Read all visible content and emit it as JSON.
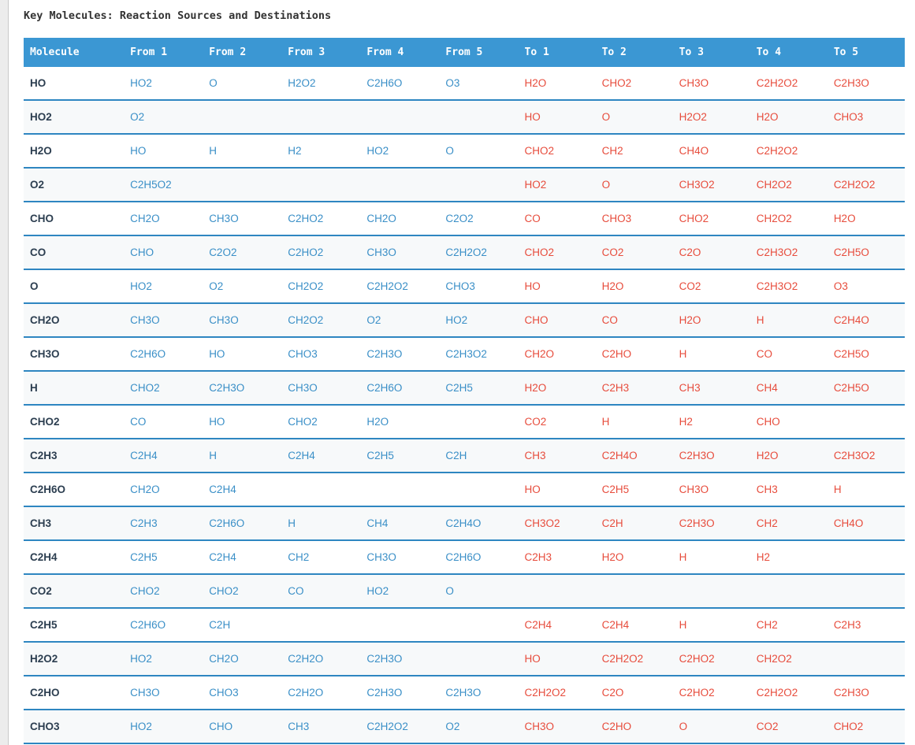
{
  "title": "Key Molecules: Reaction Sources and Destinations",
  "colors": {
    "header_bg": "#3b97d3",
    "row_separator": "#2e86c1",
    "from_text": "#3a8fc7",
    "to_text": "#e74c3c",
    "molecule_text": "#2c3e50",
    "stripe_bg": "#f7f9fa",
    "title_text": "#333333"
  },
  "table": {
    "columns": [
      "Molecule",
      "From 1",
      "From 2",
      "From 3",
      "From 4",
      "From 5",
      "To 1",
      "To 2",
      "To 3",
      "To 4",
      "To 5"
    ],
    "rows": [
      {
        "molecule": "HO",
        "from": [
          "HO2",
          "O",
          "H2O2",
          "C2H6O",
          "O3"
        ],
        "to": [
          "H2O",
          "CHO2",
          "CH3O",
          "C2H2O2",
          "C2H3O"
        ]
      },
      {
        "molecule": "HO2",
        "from": [
          "O2",
          "",
          "",
          "",
          ""
        ],
        "to": [
          "HO",
          "O",
          "H2O2",
          "H2O",
          "CHO3"
        ]
      },
      {
        "molecule": "H2O",
        "from": [
          "HO",
          "H",
          "H2",
          "HO2",
          "O"
        ],
        "to": [
          "CHO2",
          "CH2",
          "CH4O",
          "C2H2O2",
          ""
        ]
      },
      {
        "molecule": "O2",
        "from": [
          "C2H5O2",
          "",
          "",
          "",
          ""
        ],
        "to": [
          "HO2",
          "O",
          "CH3O2",
          "CH2O2",
          "C2H2O2"
        ]
      },
      {
        "molecule": "CHO",
        "from": [
          "CH2O",
          "CH3O",
          "C2HO2",
          "CH2O",
          "C2O2"
        ],
        "to": [
          "CO",
          "CHO3",
          "CHO2",
          "CH2O2",
          "H2O"
        ]
      },
      {
        "molecule": "CO",
        "from": [
          "CHO",
          "C2O2",
          "C2HO2",
          "CH3O",
          "C2H2O2"
        ],
        "to": [
          "CHO2",
          "CO2",
          "C2O",
          "C2H3O2",
          "C2H5O"
        ]
      },
      {
        "molecule": "O",
        "from": [
          "HO2",
          "O2",
          "CH2O2",
          "C2H2O2",
          "CHO3"
        ],
        "to": [
          "HO",
          "H2O",
          "CO2",
          "C2H3O2",
          "O3"
        ]
      },
      {
        "molecule": "CH2O",
        "from": [
          "CH3O",
          "CH3O",
          "CH2O2",
          "O2",
          "HO2"
        ],
        "to": [
          "CHO",
          "CO",
          "H2O",
          "H",
          "C2H4O"
        ]
      },
      {
        "molecule": "CH3O",
        "from": [
          "C2H6O",
          "HO",
          "CHO3",
          "C2H3O",
          "C2H3O2"
        ],
        "to": [
          "CH2O",
          "C2HO",
          "H",
          "CO",
          "C2H5O"
        ]
      },
      {
        "molecule": "H",
        "from": [
          "CHO2",
          "C2H3O",
          "CH3O",
          "C2H6O",
          "C2H5"
        ],
        "to": [
          "H2O",
          "C2H3",
          "CH3",
          "CH4",
          "C2H5O"
        ]
      },
      {
        "molecule": "CHO2",
        "from": [
          "CO",
          "HO",
          "CHO2",
          "H2O",
          ""
        ],
        "to": [
          "CO2",
          "H",
          "H2",
          "CHO",
          ""
        ]
      },
      {
        "molecule": "C2H3",
        "from": [
          "C2H4",
          "H",
          "C2H4",
          "C2H5",
          "C2H"
        ],
        "to": [
          "CH3",
          "C2H4O",
          "C2H3O",
          "H2O",
          "C2H3O2"
        ]
      },
      {
        "molecule": "C2H6O",
        "from": [
          "CH2O",
          "C2H4",
          "",
          "",
          ""
        ],
        "to": [
          "HO",
          "C2H5",
          "CH3O",
          "CH3",
          "H"
        ]
      },
      {
        "molecule": "CH3",
        "from": [
          "C2H3",
          "C2H6O",
          "H",
          "CH4",
          "C2H4O"
        ],
        "to": [
          "CH3O2",
          "C2H",
          "C2H3O",
          "CH2",
          "CH4O"
        ]
      },
      {
        "molecule": "C2H4",
        "from": [
          "C2H5",
          "C2H4",
          "CH2",
          "CH3O",
          "C2H6O"
        ],
        "to": [
          "C2H3",
          "H2O",
          "H",
          "H2",
          ""
        ]
      },
      {
        "molecule": "CO2",
        "from": [
          "CHO2",
          "CHO2",
          "CO",
          "HO2",
          "O"
        ],
        "to": [
          "",
          "",
          "",
          "",
          ""
        ]
      },
      {
        "molecule": "C2H5",
        "from": [
          "C2H6O",
          "C2H",
          "",
          "",
          ""
        ],
        "to": [
          "C2H4",
          "C2H4",
          "H",
          "CH2",
          "C2H3"
        ]
      },
      {
        "molecule": "H2O2",
        "from": [
          "HO2",
          "CH2O",
          "C2H2O",
          "C2H3O",
          ""
        ],
        "to": [
          "HO",
          "C2H2O2",
          "C2HO2",
          "CH2O2",
          ""
        ]
      },
      {
        "molecule": "C2HO",
        "from": [
          "CH3O",
          "CHO3",
          "C2H2O",
          "C2H3O",
          "C2H3O"
        ],
        "to": [
          "C2H2O2",
          "C2O",
          "C2HO2",
          "C2H2O2",
          "C2H3O"
        ]
      },
      {
        "molecule": "CHO3",
        "from": [
          "HO2",
          "CHO",
          "CH3",
          "C2H2O2",
          "O2"
        ],
        "to": [
          "CH3O",
          "C2HO",
          "O",
          "CO2",
          "CHO2"
        ]
      }
    ]
  }
}
